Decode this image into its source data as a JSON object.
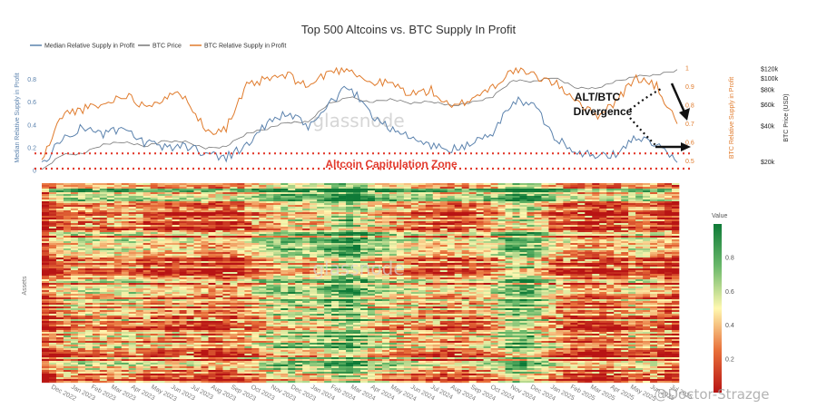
{
  "colors": {
    "median": "#5b82ad",
    "btc_price": "#777777",
    "btc_rsp": "#e07b2c",
    "zone_line": "#e23b2e",
    "zone_text": "#e23b2e",
    "arrow": "#111111"
  },
  "chart_data": [
    {
      "type": "line",
      "title": "Top 500 Altcoins vs. BTC Supply In Profit",
      "watermark": "glassnode",
      "legend_placement": "top-left",
      "ylabel_left": "Median Relative Supply in Profit",
      "ylabel_right": "BTC Relative Supply in Profit",
      "ylabel_price": "BTC Price (USD)",
      "ylim_left": [
        0,
        0.9
      ],
      "ylim_right": [
        0.45,
        1.0
      ],
      "yticks_left": [
        "0",
        "0.2",
        "0.4",
        "0.6",
        "0.8"
      ],
      "yticks_right": [
        "0.5",
        "0.6",
        "0.7",
        "0.8",
        "0.9",
        "1"
      ],
      "yticks_price": [
        "$20k",
        "$40k",
        "$60k",
        "$80k",
        "$100k",
        "$120k"
      ],
      "x_months": [
        "Dec 2022",
        "Jan 2023",
        "Feb 2023",
        "Mar 2023",
        "Apr 2023",
        "May 2023",
        "Jun 2023",
        "Jul 2023",
        "Aug 2023",
        "Sep 2023",
        "Oct 2023",
        "Nov 2023",
        "Dec 2023",
        "Jan 2024",
        "Feb 2024",
        "Mar 2024",
        "Apr 2024",
        "May 2024",
        "Jun 2024",
        "Jul 2024",
        "Aug 2024",
        "Sep 2024",
        "Oct 2024",
        "Nov 2024",
        "Dec 2024",
        "Jan 2025",
        "Feb 2025",
        "Mar 2025",
        "Apr 2025",
        "May 2025",
        "Jun 2025",
        "Jul 2025"
      ],
      "series": [
        {
          "name": "Median Relative Supply in Profit",
          "axis": "left",
          "values": [
            0.05,
            0.28,
            0.38,
            0.32,
            0.36,
            0.24,
            0.2,
            0.22,
            0.15,
            0.12,
            0.22,
            0.42,
            0.5,
            0.38,
            0.58,
            0.74,
            0.5,
            0.38,
            0.28,
            0.22,
            0.18,
            0.24,
            0.32,
            0.62,
            0.58,
            0.3,
            0.18,
            0.12,
            0.14,
            0.3,
            0.22,
            0.07
          ]
        },
        {
          "name": "BTC Price",
          "axis": "price",
          "values": [
            17000,
            23000,
            23500,
            28000,
            29500,
            27000,
            30000,
            29500,
            26000,
            27000,
            34500,
            38000,
            43000,
            43000,
            61000,
            70000,
            63000,
            67000,
            62000,
            64000,
            59000,
            63000,
            70000,
            96000,
            94000,
            102000,
            84000,
            82000,
            94000,
            104000,
            107000,
            117000
          ]
        },
        {
          "name": "BTC Relative Supply in Profit",
          "axis": "right",
          "values": [
            0.5,
            0.75,
            0.78,
            0.8,
            0.86,
            0.8,
            0.84,
            0.86,
            0.66,
            0.68,
            0.9,
            0.94,
            0.96,
            0.9,
            0.98,
            1.0,
            0.92,
            0.92,
            0.86,
            0.88,
            0.78,
            0.84,
            0.9,
            0.99,
            0.96,
            0.92,
            0.84,
            0.74,
            0.82,
            0.95,
            0.9,
            0.7
          ]
        }
      ],
      "annotations": {
        "divergence": [
          "ALT/BTC",
          "Divergence"
        ],
        "zone": "Altcoin Capitulation Zone",
        "zone_level": 0.15
      }
    },
    {
      "type": "heatmap",
      "ylabel": "Assets",
      "colorbar_title": "Value",
      "colorbar_ticks": [
        "0.2",
        "0.4",
        "0.6",
        "0.8"
      ],
      "colorscale": [
        "#b81414",
        "#e8703a",
        "#fff8b0",
        "#6ab86a",
        "#0e7a37"
      ],
      "x_labels": [
        "Dec 2022",
        "Jan 2023",
        "Feb 2023",
        "Mar 2023",
        "Apr 2023",
        "May 2023",
        "Jun 2023",
        "Jul 2023",
        "Aug 2023",
        "Sep 2023",
        "Oct 2023",
        "Nov 2023",
        "Dec 2023",
        "Jan 2024",
        "Feb 2024",
        "Mar 2024",
        "Apr 2024",
        "May 2024",
        "Jun 2024",
        "Jul 2024",
        "Aug 2024",
        "Sep 2024",
        "Oct 2024",
        "Nov 2024",
        "Dec 2024",
        "Jan 2025",
        "Feb 2025",
        "Mar 2025",
        "Apr 2025",
        "May 2025",
        "Jun 2025",
        "Jul 2025"
      ],
      "column_means": [
        0.1,
        0.35,
        0.38,
        0.35,
        0.4,
        0.28,
        0.25,
        0.28,
        0.2,
        0.18,
        0.3,
        0.48,
        0.58,
        0.48,
        0.62,
        0.78,
        0.52,
        0.44,
        0.36,
        0.3,
        0.25,
        0.3,
        0.38,
        0.66,
        0.62,
        0.34,
        0.22,
        0.15,
        0.18,
        0.34,
        0.28,
        0.12
      ]
    }
  ],
  "watermark": "@Doctor-Strazge"
}
